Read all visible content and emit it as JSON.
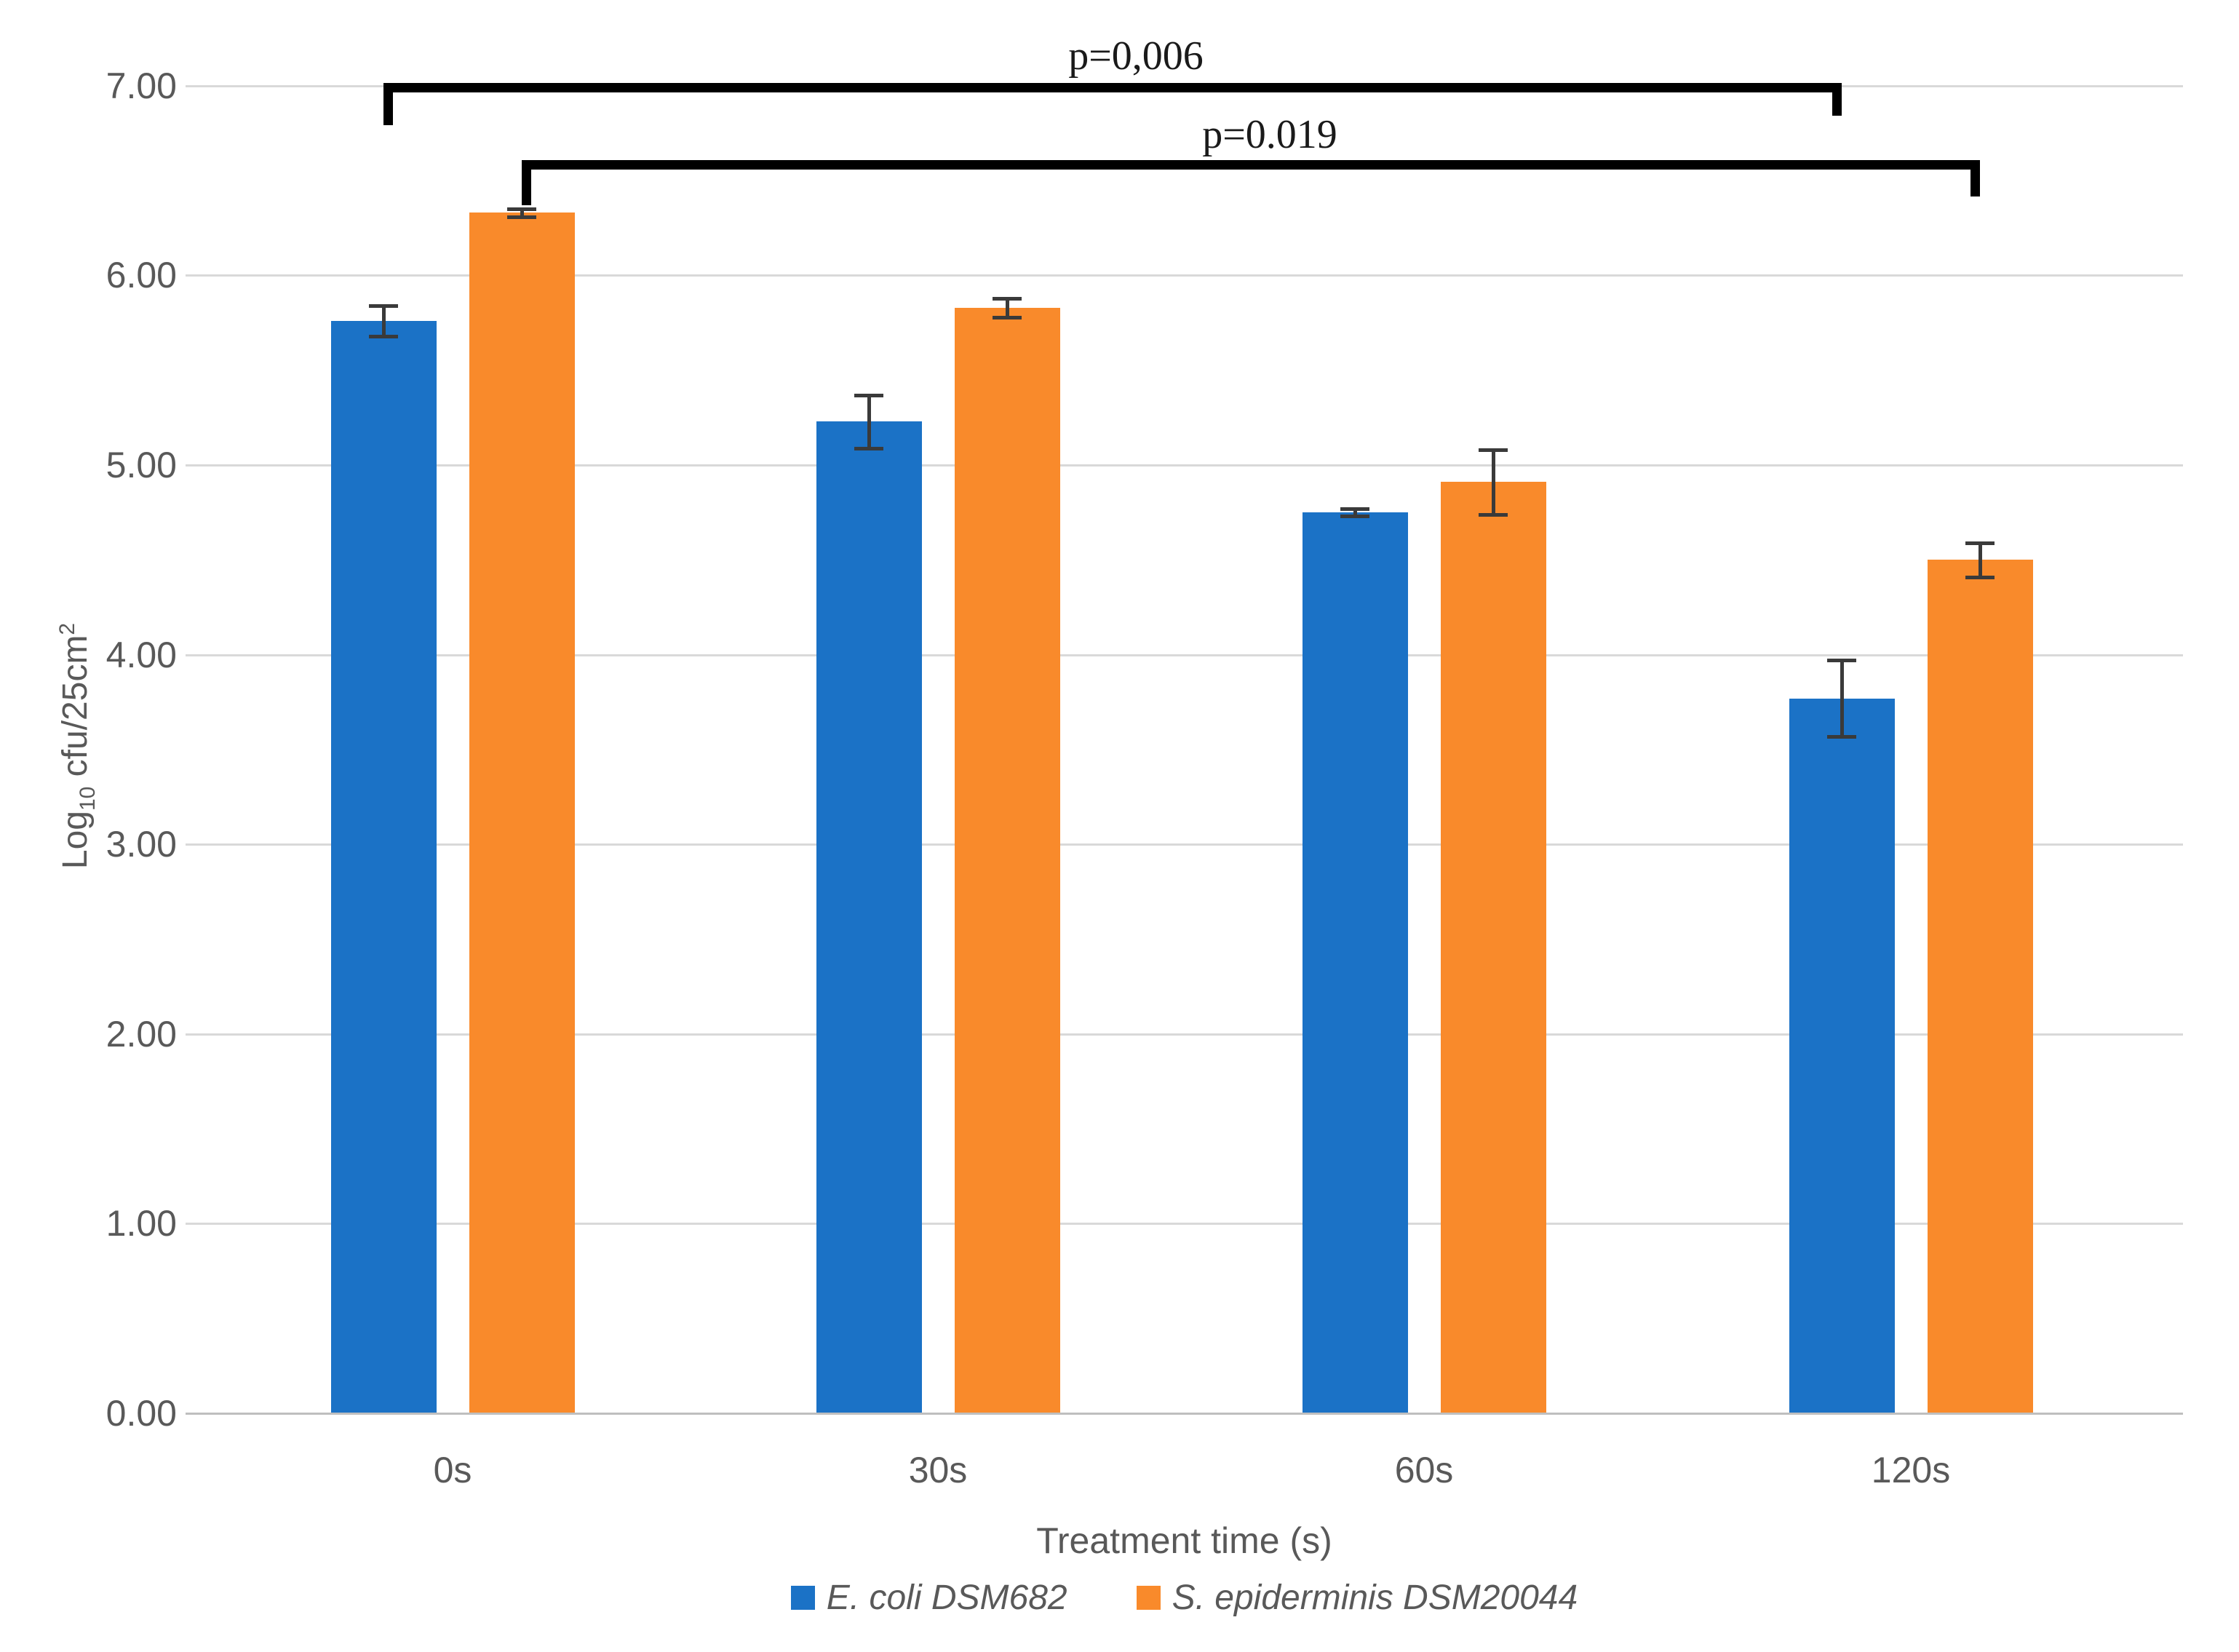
{
  "figure": {
    "background": "#FFFFFF",
    "text_color": "#595959",
    "grid_color": "#D9D9D9",
    "axis_line_color": "#BFBFBF",
    "error_bar_color": "#3A3A3A",
    "bracket_color": "#000000"
  },
  "chart_data": {
    "type": "bar",
    "title": "",
    "categories": [
      "0s",
      "30s",
      "60s",
      "120s"
    ],
    "series": [
      {
        "name": "E. coli DSM682",
        "color": "#1B72C6",
        "values": [
          5.76,
          5.23,
          4.75,
          3.77
        ],
        "errors": [
          0.08,
          0.14,
          0.02,
          0.2
        ]
      },
      {
        "name": "S. epiderminis DSM20044",
        "color": "#F98A2B",
        "values": [
          6.33,
          5.83,
          4.91,
          4.5
        ],
        "errors": [
          0.02,
          0.05,
          0.17,
          0.09
        ]
      }
    ],
    "xlabel": "Treatment time (s)",
    "ylabel": "Log10 cfu/25cm2",
    "ylabel_parts": {
      "prefix": "Log",
      "sub": "10",
      "mid": " cfu/25cm",
      "sup": "2"
    },
    "ylim": [
      0,
      7
    ],
    "yticks": [
      "0.00",
      "1.00",
      "2.00",
      "3.00",
      "4.00",
      "5.00",
      "6.00",
      "7.00"
    ],
    "grid": true,
    "legend_position": "bottom",
    "annotations": [
      {
        "label": "p=0,006",
        "series": "E. coli DSM682",
        "from_category": "0s",
        "to_category": "120s"
      },
      {
        "label": "p=0.019",
        "series": "S. epiderminis DSM20044",
        "from_category": "0s",
        "to_category": "120s"
      }
    ]
  }
}
